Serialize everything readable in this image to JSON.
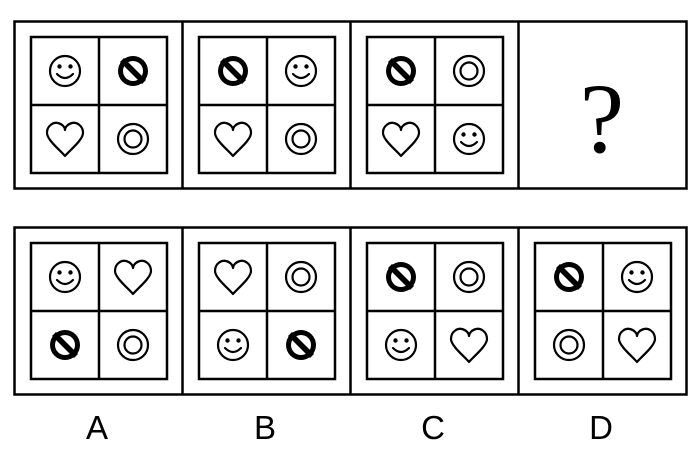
{
  "question_row": [
    {
      "cells": [
        "smiley-icon",
        "prohibited-icon",
        "heart-icon",
        "ring-icon"
      ]
    },
    {
      "cells": [
        "prohibited-icon",
        "smiley-icon",
        "heart-icon",
        "ring-icon"
      ]
    },
    {
      "cells": [
        "prohibited-icon",
        "ring-icon",
        "heart-icon",
        "smiley-icon"
      ]
    },
    {
      "unknown": "?"
    }
  ],
  "options": [
    {
      "label": "A",
      "cells": [
        "smiley-icon",
        "heart-icon",
        "prohibited-icon",
        "ring-icon"
      ]
    },
    {
      "label": "B",
      "cells": [
        "heart-icon",
        "ring-icon",
        "smiley-icon",
        "prohibited-icon"
      ]
    },
    {
      "label": "C",
      "cells": [
        "prohibited-icon",
        "ring-icon",
        "smiley-icon",
        "heart-icon"
      ]
    },
    {
      "label": "D",
      "cells": [
        "prohibited-icon",
        "smiley-icon",
        "ring-icon",
        "heart-icon"
      ]
    }
  ]
}
